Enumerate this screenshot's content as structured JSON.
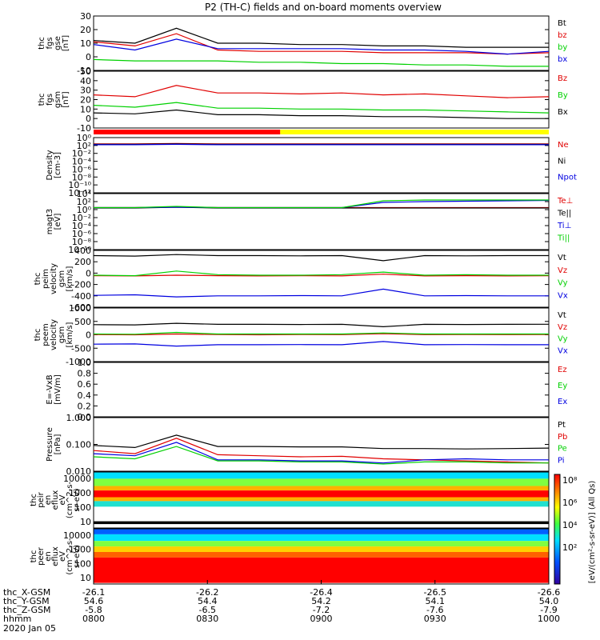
{
  "chart_data": {
    "type": "multi-panel",
    "title": "P2 (TH-C) fields and on-board moments overview",
    "panels": [
      {
        "id": "fgs_gse",
        "ylabel": [
          "thc",
          "fgs",
          "gse",
          "[nT]"
        ],
        "yticks": [
          "30",
          "20",
          "10",
          "0",
          "-10"
        ],
        "ylim": [
          -10,
          30
        ],
        "legend": [
          {
            "label": "Bt",
            "color": "#000000"
          },
          {
            "label": "bz",
            "color": "#e00000"
          },
          {
            "label": "by",
            "color": "#00d000"
          },
          {
            "label": "bx",
            "color": "#0000e0"
          }
        ],
        "series": [
          {
            "name": "Bt",
            "color": "#000000",
            "values": [
              12,
              10,
              21,
              10,
              10,
              9,
              9,
              8,
              8,
              7,
              7,
              7
            ]
          },
          {
            "name": "bz",
            "color": "#e00000",
            "values": [
              11,
              8,
              17,
              5,
              4,
              4,
              4,
              3,
              3,
              3,
              2,
              3
            ]
          },
          {
            "name": "by",
            "color": "#00d000",
            "values": [
              -2,
              -3,
              -3,
              -3,
              -4,
              -4,
              -5,
              -5,
              -6,
              -6,
              -7,
              -7
            ]
          },
          {
            "name": "bx",
            "color": "#0000e0",
            "values": [
              9,
              5,
              13,
              6,
              6,
              6,
              6,
              5,
              5,
              4,
              2,
              4
            ]
          }
        ]
      },
      {
        "id": "fgs_gsm",
        "ylabel": [
          "thc",
          "fgs",
          "gsm",
          "[nT]"
        ],
        "yticks": [
          "50",
          "40",
          "30",
          "20",
          "10",
          "0",
          "-10"
        ],
        "ylim": [
          -10,
          50
        ],
        "legend": [
          {
            "label": "Bz",
            "color": "#e00000"
          },
          {
            "label": "By",
            "color": "#00d000"
          },
          {
            "label": "Bx",
            "color": "#000000"
          }
        ],
        "series": [
          {
            "name": "Bz",
            "color": "#e00000",
            "values": [
              25,
              23,
              35,
              27,
              27,
              26,
              27,
              25,
              26,
              24,
              22,
              23
            ]
          },
          {
            "name": "By",
            "color": "#00d000",
            "values": [
              14,
              12,
              17,
              11,
              11,
              10,
              10,
              9,
              9,
              8,
              7,
              6
            ]
          },
          {
            "name": "Bx",
            "color": "#000000",
            "values": [
              6,
              5,
              9,
              4,
              4,
              3,
              3,
              2,
              2,
              1,
              0,
              0
            ]
          }
        ]
      },
      {
        "id": "density",
        "ylabel": [
          "Density",
          "[cm-3]"
        ],
        "yticks": [
          "10⁰",
          "10²",
          "10⁻²",
          "10⁻⁴",
          "10⁻⁶",
          "10⁻⁸",
          "10⁻¹⁰",
          "10⁻¹²"
        ],
        "ylim": [
          -12,
          2
        ],
        "legend": [
          {
            "label": "Ne",
            "color": "#e00000"
          },
          {
            "label": "Ni",
            "color": "#000000"
          },
          {
            "label": "Npot",
            "color": "#0000e0"
          }
        ],
        "series": [
          {
            "name": "Ne",
            "color": "#e00000",
            "values": [
              0.4,
              0.4,
              0.5,
              0.4,
              0.4,
              0.4,
              0.4,
              0.4,
              0.4,
              0.4,
              0.4,
              0.4
            ]
          },
          {
            "name": "Ni",
            "color": "#000000",
            "values": [
              0.3,
              0.3,
              0.4,
              0.3,
              0.3,
              0.3,
              0.3,
              0.3,
              0.3,
              0.3,
              0.3,
              0.3
            ]
          },
          {
            "name": "Npot",
            "color": "#0000e0",
            "values": [
              0.2,
              0.2,
              0.3,
              0.2,
              0.2,
              0.2,
              0.2,
              0.2,
              0.2,
              0.2,
              0.2,
              0.2
            ]
          }
        ]
      },
      {
        "id": "temperature",
        "ylabel": [
          "magt3",
          "[eV]"
        ],
        "yticks": [
          "10⁴",
          "10²",
          "10⁰",
          "10⁻²",
          "10⁻⁴",
          "10⁻⁶",
          "10⁻⁸",
          "10⁻¹⁰"
        ],
        "ylim": [
          -10,
          4
        ],
        "legend": [
          {
            "label": "Te⊥",
            "color": "#e00000"
          },
          {
            "label": "Te||",
            "color": "#000000"
          },
          {
            "label": "Ti⊥",
            "color": "#0000e0"
          },
          {
            "label": "Ti||",
            "color": "#00d000"
          }
        ],
        "series": [
          {
            "name": "Te⊥",
            "color": "#e00000",
            "values": [
              0.5,
              0.5,
              0.7,
              0.5,
              0.5,
              0.5,
              0.5,
              0.5,
              0.5,
              0.5,
              0.5,
              0.5
            ]
          },
          {
            "name": "Te||",
            "color": "#000000",
            "values": [
              0.4,
              0.4,
              0.6,
              0.4,
              0.4,
              0.4,
              0.4,
              0.4,
              0.4,
              0.4,
              0.4,
              0.4
            ]
          },
          {
            "name": "Ti⊥",
            "color": "#0000e0",
            "values": [
              0.5,
              0.5,
              0.6,
              0.5,
              0.5,
              0.5,
              0.5,
              1.8,
              2.0,
              2.1,
              2.2,
              2.3
            ]
          },
          {
            "name": "Ti||",
            "color": "#00d000",
            "values": [
              0.5,
              0.5,
              0.8,
              0.5,
              0.5,
              0.5,
              0.5,
              2.2,
              2.4,
              2.4,
              2.4,
              2.4
            ]
          }
        ]
      },
      {
        "id": "peim_velocity",
        "ylabel": [
          "thc",
          "peim",
          "velocity",
          "gsm",
          "[km/s]"
        ],
        "yticks": [
          "400",
          "200",
          "0",
          "-200",
          "-400",
          "-600"
        ],
        "ylim": [
          -600,
          500
        ],
        "legend": [
          {
            "label": "Vt",
            "color": "#000000"
          },
          {
            "label": "Vz",
            "color": "#e00000"
          },
          {
            "label": "Vy",
            "color": "#00d000"
          },
          {
            "label": "Vx",
            "color": "#0000e0"
          }
        ],
        "series": [
          {
            "name": "Vt",
            "color": "#000000",
            "values": [
              400,
              390,
              420,
              400,
              400,
              395,
              400,
              300,
              400,
              395,
              400,
              400
            ]
          },
          {
            "name": "Vz",
            "color": "#e00000",
            "values": [
              10,
              5,
              20,
              10,
              5,
              10,
              5,
              40,
              5,
              10,
              5,
              10
            ]
          },
          {
            "name": "Vy",
            "color": "#00d000",
            "values": [
              20,
              10,
              100,
              30,
              20,
              20,
              30,
              80,
              20,
              30,
              20,
              20
            ]
          },
          {
            "name": "Vx",
            "color": "#0000e0",
            "values": [
              -370,
              -360,
              -400,
              -380,
              -380,
              -375,
              -380,
              -250,
              -380,
              -375,
              -380,
              -380
            ]
          }
        ]
      },
      {
        "id": "peem_velocity",
        "ylabel": [
          "thc",
          "peem",
          "velocity",
          "gsm",
          "[km/s]"
        ],
        "yticks": [
          "1000",
          "500",
          "0",
          "-500",
          "-1000"
        ],
        "ylim": [
          -1000,
          1000
        ],
        "legend": [
          {
            "label": "Vt",
            "color": "#000000"
          },
          {
            "label": "Vz",
            "color": "#e00000"
          },
          {
            "label": "Vy",
            "color": "#00d000"
          },
          {
            "label": "Vx",
            "color": "#0000e0"
          }
        ],
        "series": [
          {
            "name": "Vt",
            "color": "#000000",
            "values": [
              380,
              370,
              430,
              390,
              390,
              385,
              390,
              300,
              390,
              385,
              390,
              395
            ]
          },
          {
            "name": "Vz",
            "color": "#e00000",
            "values": [
              10,
              0,
              30,
              10,
              0,
              10,
              5,
              40,
              5,
              10,
              5,
              10
            ]
          },
          {
            "name": "Vy",
            "color": "#00d000",
            "values": [
              30,
              20,
              90,
              30,
              30,
              30,
              30,
              70,
              30,
              30,
              30,
              30
            ]
          },
          {
            "name": "Vx",
            "color": "#0000e0",
            "values": [
              -350,
              -340,
              -420,
              -370,
              -370,
              -365,
              -370,
              -250,
              -370,
              -365,
              -370,
              -370
            ]
          }
        ]
      },
      {
        "id": "efield",
        "ylabel": [
          "E=-VxB",
          "[mV/m]"
        ],
        "yticks": [
          "1.0",
          "0.8",
          "0.6",
          "0.4",
          "0.2",
          "0.0"
        ],
        "ylim": [
          0,
          1
        ],
        "legend": [
          {
            "label": "Ez",
            "color": "#e00000"
          },
          {
            "label": "Ey",
            "color": "#00d000"
          },
          {
            "label": "Ex",
            "color": "#0000e0"
          }
        ],
        "series": []
      },
      {
        "id": "pressure",
        "ylabel": [
          "Pressure",
          "[nPa]"
        ],
        "yticks": [
          "1.000",
          "0.100",
          "0.010"
        ],
        "ylim": [
          -2.3,
          0.3
        ],
        "legend": [
          {
            "label": "Pt",
            "color": "#000000"
          },
          {
            "label": "Pb",
            "color": "#e00000"
          },
          {
            "label": "Pe",
            "color": "#00d000"
          },
          {
            "label": "Pi",
            "color": "#0000e0"
          }
        ],
        "series": [
          {
            "name": "Pt",
            "color": "#000000",
            "values": [
              -1.05,
              -1.15,
              -0.55,
              -1.1,
              -1.1,
              -1.12,
              -1.12,
              -1.2,
              -1.2,
              -1.22,
              -1.2,
              -1.18
            ]
          },
          {
            "name": "Pb",
            "color": "#e00000",
            "values": [
              -1.3,
              -1.45,
              -0.7,
              -1.5,
              -1.55,
              -1.6,
              -1.58,
              -1.7,
              -1.75,
              -1.8,
              -1.85,
              -1.9
            ]
          },
          {
            "name": "Pe",
            "color": "#00d000",
            "values": [
              -1.6,
              -1.7,
              -1.1,
              -1.8,
              -1.8,
              -1.85,
              -1.85,
              -1.95,
              -1.85,
              -1.85,
              -1.9,
              -1.9
            ]
          },
          {
            "name": "Pi",
            "color": "#0000e0",
            "values": [
              -1.45,
              -1.55,
              -0.9,
              -1.75,
              -1.75,
              -1.8,
              -1.8,
              -1.9,
              -1.75,
              -1.7,
              -1.75,
              -1.75
            ]
          }
        ]
      },
      {
        "id": "peir_spectrogram",
        "type": "heatmap",
        "ylabel": [
          "thc",
          "peir",
          "en",
          "eflux",
          "eV",
          "(cm^2-s-",
          "sr-eV)"
        ],
        "yticks": [
          "10000",
          "1000",
          "100",
          "10"
        ]
      },
      {
        "id": "peer_spectrogram",
        "type": "heatmap",
        "ylabel": [
          "thc",
          "peer",
          "en",
          "eflux",
          "eV",
          "(cm^2-s-",
          "sr-eV)"
        ],
        "yticks": [
          "10000",
          "1000",
          "100",
          "10"
        ]
      }
    ],
    "colorbar": {
      "ticks": [
        "10⁸",
        "10⁶",
        "10⁴",
        "10²"
      ],
      "label": "[eV/(cm²-s-sr-eV)] (All Qs)"
    },
    "x_axis": {
      "rows": [
        {
          "label": "thc_X-GSM",
          "values": [
            "-26.1",
            "-26.2",
            "-26.4",
            "-26.5",
            "-26.6"
          ]
        },
        {
          "label": "thc_Y-GSM",
          "values": [
            "54.6",
            "54.4",
            "54.2",
            "54.1",
            "54.0"
          ]
        },
        {
          "label": "thc_Z-GSM",
          "values": [
            "-5.8",
            "-6.5",
            "-7.2",
            "-7.6",
            "-7.9"
          ]
        },
        {
          "label": "hhmm",
          "values": [
            "0800",
            "0830",
            "0900",
            "0930",
            "1000"
          ]
        }
      ],
      "date": "2020 Jan 05"
    },
    "mode_bar": {
      "segments": [
        {
          "color": "#ff0000",
          "fraction": 0.41
        },
        {
          "color": "#ffff00",
          "fraction": 0.59
        }
      ]
    }
  }
}
